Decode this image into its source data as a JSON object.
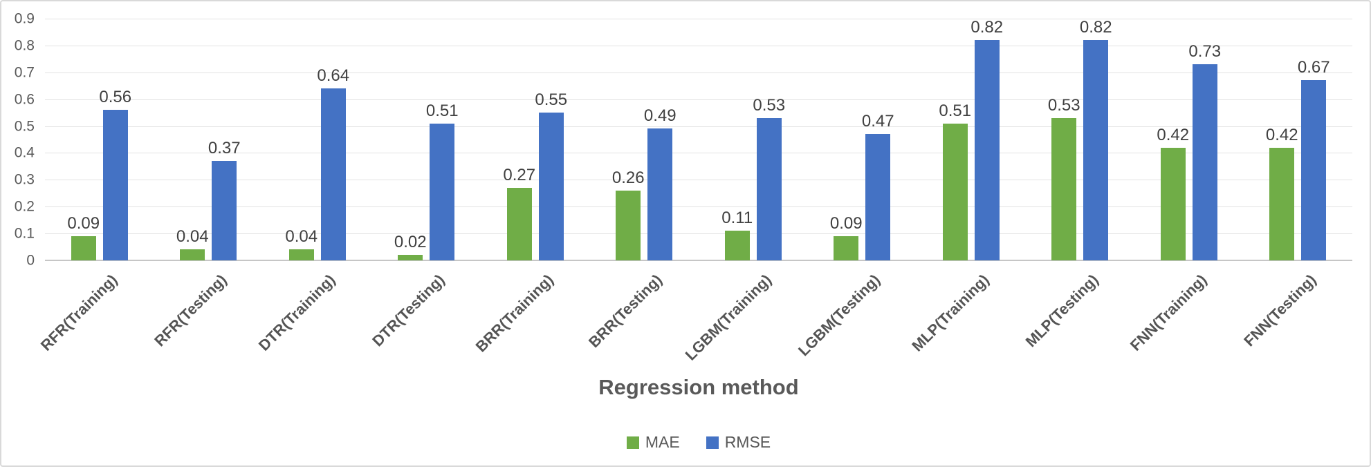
{
  "chart_data": {
    "type": "bar",
    "title": "",
    "xlabel": "Regression method",
    "ylabel": "",
    "categories": [
      "RFR(Training)",
      "RFR(Testing)",
      "DTR(Training)",
      "DTR(Testing)",
      "BRR(Training)",
      "BRR(Testing)",
      "LGBM(Training)",
      "LGBM(Testing)",
      "MLP(Training)",
      "MLP(Testing)",
      "FNN(Training)",
      "FNN(Testing)"
    ],
    "series": [
      {
        "name": "MAE",
        "color": "#70AD47",
        "values": [
          0.09,
          0.04,
          0.04,
          0.02,
          0.27,
          0.26,
          0.11,
          0.09,
          0.51,
          0.53,
          0.42,
          0.42
        ]
      },
      {
        "name": "RMSE",
        "color": "#4472C4",
        "values": [
          0.56,
          0.37,
          0.64,
          0.51,
          0.55,
          0.49,
          0.53,
          0.47,
          0.82,
          0.82,
          0.73,
          0.67
        ]
      }
    ],
    "y_ticks": [
      "0.9",
      "0.8",
      "0.7",
      "0.6",
      "0.5",
      "0.4",
      "0.3",
      "0.2",
      "0.1",
      "0"
    ],
    "ylim": [
      0,
      0.9
    ],
    "grid": true,
    "data_labels": true,
    "data_label_decimals": 2,
    "legend_position": "bottom",
    "x_labels_rotation_deg": -45
  },
  "colors": {
    "gridline": "#E2E2E2",
    "axis_line": "#C6C6C6",
    "data_label_text": "#404040",
    "axis_text": "#595959",
    "frame_border": "#D9D9D9",
    "background": "#FFFFFF"
  }
}
